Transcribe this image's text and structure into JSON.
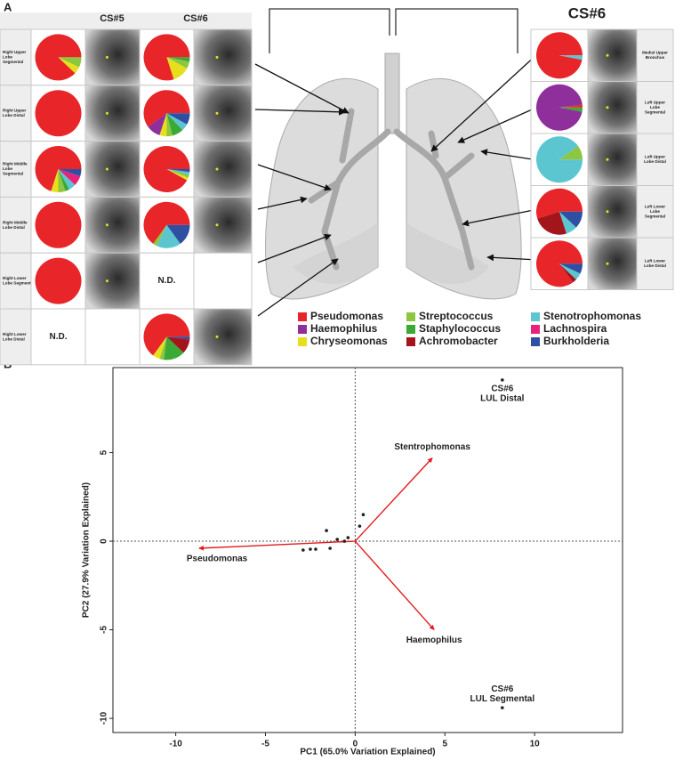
{
  "panel_labels": [
    "A",
    "B"
  ],
  "figure_a": {
    "left_headers": [
      "CS#5",
      "CS#6"
    ],
    "right_header": "CS#6",
    "nd_label": "N.D.",
    "legend": [
      {
        "name": "Pseudomonas",
        "color": "#e8262a"
      },
      {
        "name": "Haemophilus",
        "color": "#8e2f9c"
      },
      {
        "name": "Chryseomonas",
        "color": "#e6e01c"
      },
      {
        "name": "Streptococcus",
        "color": "#8dc63f"
      },
      {
        "name": "Staphylococcus",
        "color": "#3aa935"
      },
      {
        "name": "Achromobacter",
        "color": "#a3151b"
      },
      {
        "name": "Stenotrophomonas",
        "color": "#5bc6d0"
      },
      {
        "name": "Lachnospira",
        "color": "#e8227a"
      },
      {
        "name": "Burkholderia",
        "color": "#2e4fa2"
      }
    ],
    "left_rows": [
      {
        "label": [
          "Right Upper",
          "Lobe",
          "Segmental"
        ],
        "cs5": [
          88,
          0,
          5,
          7,
          0,
          0,
          0,
          0,
          0
        ],
        "cs6": [
          80,
          0,
          12,
          5,
          3,
          0,
          0,
          0,
          0
        ]
      },
      {
        "label": [
          "Right Upper",
          "Lobe Distal"
        ],
        "cs5": [
          100,
          0,
          0,
          0,
          0,
          0,
          0,
          0,
          0
        ],
        "cs6": [
          60,
          10,
          5,
          4,
          8,
          0,
          5,
          0,
          8
        ]
      },
      {
        "label": [
          "Right Middle",
          "Lobe",
          "Segmental"
        ],
        "cs5": [
          70,
          0,
          5,
          5,
          3,
          0,
          5,
          7,
          5
        ],
        "cs6": [
          92,
          0,
          2,
          2,
          0,
          0,
          2,
          0,
          2
        ]
      },
      {
        "label": [
          "Right Middle",
          "Lobe Distal"
        ],
        "cs5": [
          100,
          0,
          0,
          0,
          0,
          0,
          0,
          0,
          0
        ],
        "cs6": [
          65,
          0,
          0,
          3,
          0,
          0,
          17,
          0,
          15
        ]
      },
      {
        "label": [
          "Right Lower",
          "Lobe Segmental"
        ],
        "cs5": [
          100,
          0,
          0,
          0,
          0,
          0,
          0,
          0,
          0
        ],
        "cs6": null
      },
      {
        "label": [
          "Right Lower",
          "Lobe Distal"
        ],
        "cs5": null,
        "cs6": [
          65,
          0,
          5,
          3,
          15,
          10,
          0,
          0,
          2
        ]
      }
    ],
    "right_rows": [
      {
        "label": [
          "Medial Upper",
          "Bronchus"
        ],
        "values": [
          97,
          0,
          0,
          0,
          0,
          0,
          3,
          0,
          0
        ]
      },
      {
        "label": [
          "Left Upper",
          "Lobe",
          "Segmental"
        ],
        "values": [
          2,
          95,
          0,
          0,
          3,
          0,
          0,
          0,
          0
        ]
      },
      {
        "label": [
          "Left Upper",
          "Lobe Distal"
        ],
        "values": [
          0,
          0,
          0,
          10,
          0,
          0,
          90,
          0,
          0
        ]
      },
      {
        "label": [
          "Left Lower",
          "Lobe",
          "Segmental"
        ],
        "values": [
          55,
          0,
          0,
          0,
          0,
          25,
          8,
          0,
          12
        ]
      },
      {
        "label": [
          "Left Lower",
          "Lobe Distal"
        ],
        "values": [
          85,
          0,
          0,
          0,
          0,
          3,
          5,
          0,
          7
        ]
      }
    ]
  },
  "chart_data": {
    "type": "biplot",
    "x_label": "PC1 (65.0% Variation Explained)",
    "y_label": "PC2 (27.9% Variation Explained)",
    "xlim": [
      -13.5,
      14.9
    ],
    "ylim": [
      -10.8,
      9.8
    ],
    "xticks": [
      -10,
      -5,
      0,
      5,
      10
    ],
    "yticks": [
      -10,
      -5,
      0,
      5
    ],
    "samples": {
      "x": [
        8.2,
        8.2,
        -1.6,
        -1.0,
        -1.4,
        -2.2,
        -2.5,
        -2.9,
        -0.4,
        0.25,
        0.45,
        -0.6
      ],
      "y": [
        9.1,
        -9.4,
        0.6,
        0.1,
        -0.4,
        -0.45,
        -0.45,
        -0.5,
        0.2,
        0.85,
        1.5,
        0.0
      ],
      "color": "#222222",
      "labels": [
        [
          "CS#6",
          "LUL Distal"
        ],
        [
          "CS#6",
          "LUL Segmental"
        ],
        null,
        null,
        null,
        null,
        null,
        null,
        null,
        null,
        null,
        null
      ]
    },
    "loadings": {
      "names": [
        "Stentrophomonas",
        "Haemophilus",
        "Pseudomonas"
      ],
      "x": [
        4.3,
        4.4,
        -8.7
      ],
      "y": [
        4.7,
        -5.0,
        -0.4
      ],
      "color": "#e41a1c"
    }
  }
}
